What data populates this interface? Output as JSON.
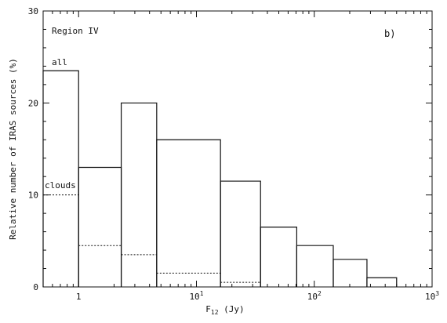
{
  "chart_data": {
    "type": "bar",
    "x_scale": "log",
    "xlim": [
      0.5,
      1000
    ],
    "ylim": [
      0,
      30
    ],
    "xlabel_main": "F",
    "xlabel_sub": "12",
    "xlabel_unit": " (Jy)",
    "ylabel": "Relative number of IRAS sources (%)",
    "region_label": "Region IV",
    "panel_label": "b)",
    "x_ticks": [
      {
        "value": 1,
        "base": "1",
        "exp": ""
      },
      {
        "value": 10,
        "base": "10",
        "exp": "1"
      },
      {
        "value": 100,
        "base": "10",
        "exp": "2"
      },
      {
        "value": 1000,
        "base": "10",
        "exp": "3"
      }
    ],
    "y_ticks": [
      {
        "value": 0,
        "label": "0"
      },
      {
        "value": 10,
        "label": "10"
      },
      {
        "value": 20,
        "label": "20"
      },
      {
        "value": 30,
        "label": "30"
      }
    ],
    "grid": false,
    "series": [
      {
        "name": "all",
        "style": "solid",
        "bins": [
          {
            "x0": 0.5,
            "x1": 1.0,
            "value": 23.5
          },
          {
            "x0": 1.0,
            "x1": 2.3,
            "value": 13.0
          },
          {
            "x0": 2.3,
            "x1": 4.6,
            "value": 20.0
          },
          {
            "x0": 4.6,
            "x1": 16.0,
            "value": 16.0
          },
          {
            "x0": 16.0,
            "x1": 35.0,
            "value": 11.5
          },
          {
            "x0": 35.0,
            "x1": 71.0,
            "value": 6.5
          },
          {
            "x0": 71.0,
            "x1": 145.0,
            "value": 4.5
          },
          {
            "x0": 145.0,
            "x1": 280.0,
            "value": 3.0
          },
          {
            "x0": 280.0,
            "x1": 500.0,
            "value": 1.0
          }
        ]
      },
      {
        "name": "clouds",
        "style": "dotted",
        "bins": [
          {
            "x0": 0.5,
            "x1": 1.0,
            "value": 10.0
          },
          {
            "x0": 1.0,
            "x1": 2.3,
            "value": 4.5
          },
          {
            "x0": 2.3,
            "x1": 4.6,
            "value": 3.5
          },
          {
            "x0": 4.6,
            "x1": 16.0,
            "value": 1.5
          },
          {
            "x0": 16.0,
            "x1": 35.0,
            "value": 0.5
          }
        ]
      }
    ]
  }
}
